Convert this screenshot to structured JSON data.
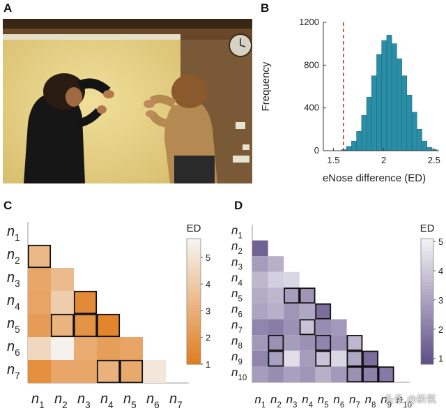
{
  "panel_labels": {
    "a": "A",
    "b": "B",
    "c": "C",
    "d": "D"
  },
  "watermark": "头条 @新氧",
  "colors": {
    "histogram_fill": "#2a8ea6",
    "histogram_stroke": "#1d6d80",
    "dashed_line": "#c0392b",
    "orange_low": "#e07b1a",
    "orange_high": "#f5f4f2",
    "purple_low": "#5b4b86",
    "purple_high": "#f2f2f5"
  },
  "chart_data": [
    {
      "id": "B",
      "type": "bar",
      "xlabel": "eNose difference (ED)",
      "ylabel": "Frequency",
      "xlim": [
        1.4,
        2.55
      ],
      "ylim": [
        0,
        1200
      ],
      "xticks": [
        1.5,
        2,
        2.5
      ],
      "xtick_labels": [
        "1.5",
        "2",
        "2.5"
      ],
      "yticks": [
        0,
        400,
        800,
        1200
      ],
      "ytick_labels": [
        "0",
        "400",
        "800",
        "1200"
      ],
      "bin_width": 0.05,
      "bin_starts": [
        1.58,
        1.63,
        1.68,
        1.73,
        1.78,
        1.83,
        1.88,
        1.93,
        1.98,
        2.03,
        2.08,
        2.13,
        2.18,
        2.23,
        2.28,
        2.33,
        2.38,
        2.43,
        2.48
      ],
      "values": [
        10,
        40,
        90,
        180,
        330,
        500,
        700,
        900,
        1030,
        1080,
        1000,
        860,
        700,
        520,
        360,
        200,
        90,
        30,
        10
      ],
      "observed_line_x": 1.6
    },
    {
      "id": "C",
      "type": "heatmap",
      "row_labels": [
        "n1",
        "n2",
        "n3",
        "n4",
        "n5",
        "n6",
        "n7"
      ],
      "col_labels": [
        "n1",
        "n2",
        "n3",
        "n4",
        "n5",
        "n6",
        "n7"
      ],
      "colorbar_title": "ED",
      "colorbar_range": [
        1,
        5.7
      ],
      "colorbar_ticks": [
        1,
        2,
        3,
        4,
        5
      ],
      "cells": [
        {
          "r": 1,
          "c": 0,
          "v": 3.4,
          "outlined": true
        },
        {
          "r": 2,
          "c": 0,
          "v": 2.7
        },
        {
          "r": 2,
          "c": 1,
          "v": 3.5
        },
        {
          "r": 3,
          "c": 0,
          "v": 2.6
        },
        {
          "r": 3,
          "c": 1,
          "v": 4.2
        },
        {
          "r": 3,
          "c": 2,
          "v": 1.6,
          "outlined": true
        },
        {
          "r": 4,
          "c": 0,
          "v": 2.3
        },
        {
          "r": 4,
          "c": 1,
          "v": 3.2,
          "outlined": true
        },
        {
          "r": 4,
          "c": 2,
          "v": 1.9,
          "outlined": true
        },
        {
          "r": 4,
          "c": 3,
          "v": 1.4,
          "outlined": true
        },
        {
          "r": 5,
          "c": 0,
          "v": 4.6
        },
        {
          "r": 5,
          "c": 1,
          "v": 5.6
        },
        {
          "r": 5,
          "c": 2,
          "v": 2.9
        },
        {
          "r": 5,
          "c": 3,
          "v": 2.4
        },
        {
          "r": 5,
          "c": 4,
          "v": 2.6
        },
        {
          "r": 6,
          "c": 0,
          "v": 1.8
        },
        {
          "r": 6,
          "c": 1,
          "v": 2.7
        },
        {
          "r": 6,
          "c": 2,
          "v": 2.7
        },
        {
          "r": 6,
          "c": 3,
          "v": 3.1,
          "outlined": true
        },
        {
          "r": 6,
          "c": 4,
          "v": 2.8,
          "outlined": true
        },
        {
          "r": 6,
          "c": 5,
          "v": 5.2
        }
      ]
    },
    {
      "id": "D",
      "type": "heatmap",
      "row_labels": [
        "n1",
        "n2",
        "n3",
        "n4",
        "n5",
        "n6",
        "n7",
        "n8",
        "n9",
        "n10"
      ],
      "col_labels": [
        "n1",
        "n2",
        "n3",
        "n4",
        "n5",
        "n6",
        "n7",
        "n8",
        "n9",
        "n10"
      ],
      "colorbar_title": "ED",
      "colorbar_range": [
        0.8,
        5.1
      ],
      "colorbar_ticks": [
        1,
        2,
        3,
        4,
        5
      ],
      "cells": [
        {
          "r": 1,
          "c": 0,
          "v": 1.4
        },
        {
          "r": 2,
          "c": 0,
          "v": 2.9
        },
        {
          "r": 2,
          "c": 1,
          "v": 3.4
        },
        {
          "r": 3,
          "c": 0,
          "v": 3.6
        },
        {
          "r": 3,
          "c": 1,
          "v": 4.2
        },
        {
          "r": 3,
          "c": 2,
          "v": 4.4
        },
        {
          "r": 4,
          "c": 0,
          "v": 3.3
        },
        {
          "r": 4,
          "c": 1,
          "v": 3.6
        },
        {
          "r": 4,
          "c": 2,
          "v": 2.9,
          "outlined": true
        },
        {
          "r": 4,
          "c": 3,
          "v": 2.7,
          "outlined": true
        },
        {
          "r": 5,
          "c": 0,
          "v": 3.1
        },
        {
          "r": 5,
          "c": 1,
          "v": 3.4
        },
        {
          "r": 5,
          "c": 2,
          "v": 2.7
        },
        {
          "r": 5,
          "c": 3,
          "v": 3.2
        },
        {
          "r": 5,
          "c": 4,
          "v": 1.7,
          "outlined": true
        },
        {
          "r": 6,
          "c": 0,
          "v": 2.3
        },
        {
          "r": 6,
          "c": 1,
          "v": 2.1
        },
        {
          "r": 6,
          "c": 2,
          "v": 2.6
        },
        {
          "r": 6,
          "c": 3,
          "v": 3.9,
          "outlined": true
        },
        {
          "r": 6,
          "c": 4,
          "v": 2.5
        },
        {
          "r": 6,
          "c": 5,
          "v": 2.8
        },
        {
          "r": 7,
          "c": 0,
          "v": 2.8
        },
        {
          "r": 7,
          "c": 1,
          "v": 2.6,
          "outlined": true
        },
        {
          "r": 7,
          "c": 2,
          "v": 2.9
        },
        {
          "r": 7,
          "c": 3,
          "v": 2.6
        },
        {
          "r": 7,
          "c": 4,
          "v": 2.3,
          "outlined": true
        },
        {
          "r": 7,
          "c": 5,
          "v": 2.6
        },
        {
          "r": 7,
          "c": 6,
          "v": 3.6,
          "outlined": true
        },
        {
          "r": 8,
          "c": 0,
          "v": 2.3
        },
        {
          "r": 8,
          "c": 1,
          "v": 3.0,
          "outlined": true
        },
        {
          "r": 8,
          "c": 2,
          "v": 4.6
        },
        {
          "r": 8,
          "c": 3,
          "v": 2.9
        },
        {
          "r": 8,
          "c": 4,
          "v": 3.9,
          "outlined": true
        },
        {
          "r": 8,
          "c": 5,
          "v": 4.4
        },
        {
          "r": 8,
          "c": 6,
          "v": 3.2,
          "outlined": true
        },
        {
          "r": 8,
          "c": 7,
          "v": 1.7,
          "outlined": true
        },
        {
          "r": 9,
          "c": 0,
          "v": 2.9
        },
        {
          "r": 9,
          "c": 1,
          "v": 2.5
        },
        {
          "r": 9,
          "c": 2,
          "v": 3.0
        },
        {
          "r": 9,
          "c": 3,
          "v": 2.7
        },
        {
          "r": 9,
          "c": 4,
          "v": 3.4
        },
        {
          "r": 9,
          "c": 5,
          "v": 2.8
        },
        {
          "r": 9,
          "c": 6,
          "v": 2.6,
          "outlined": true
        },
        {
          "r": 9,
          "c": 7,
          "v": 2.2,
          "outlined": true
        },
        {
          "r": 9,
          "c": 8,
          "v": 2.0,
          "outlined": true
        }
      ]
    }
  ]
}
